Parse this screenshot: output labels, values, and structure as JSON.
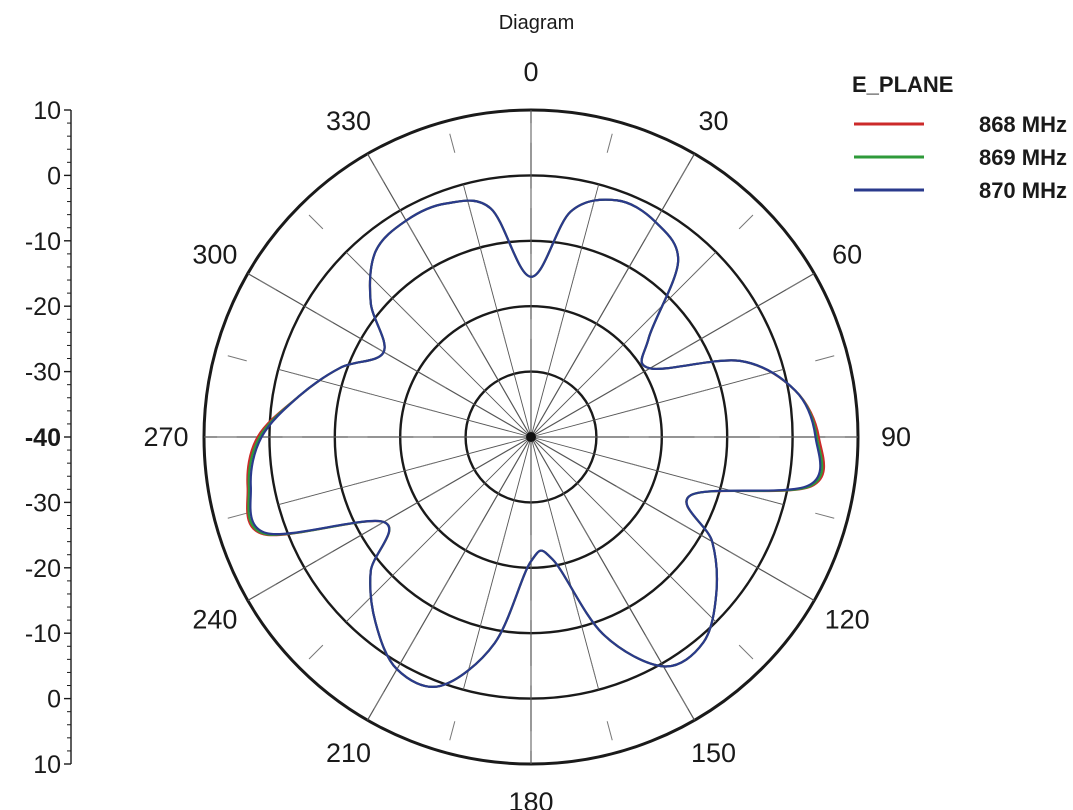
{
  "page": {
    "title": "Diagram"
  },
  "chart_data": {
    "type": "polar",
    "title": "Diagram",
    "angle_labels": [
      "0",
      "30",
      "60",
      "90",
      "120",
      "150",
      "180",
      "210",
      "240",
      "270",
      "300",
      "330"
    ],
    "radial_ticks": [
      {
        "label": "10",
        "bold": false
      },
      {
        "label": "0",
        "bold": false
      },
      {
        "label": "-10",
        "bold": false
      },
      {
        "label": "-20",
        "bold": false
      },
      {
        "label": "-30",
        "bold": false
      },
      {
        "label": "-40",
        "bold": true
      },
      {
        "label": "-30",
        "bold": false
      },
      {
        "label": "-20",
        "bold": false
      },
      {
        "label": "-10",
        "bold": false
      },
      {
        "label": "0",
        "bold": false
      },
      {
        "label": "10",
        "bold": false
      }
    ],
    "r_range": [
      -40,
      10
    ],
    "r_unit_hint": "dB",
    "legend": {
      "title": "E_PLANE",
      "position": "top-right"
    },
    "angles": [
      0,
      10,
      20,
      30,
      40,
      50,
      60,
      70,
      80,
      90,
      100,
      110,
      120,
      130,
      140,
      150,
      160,
      170,
      180,
      190,
      200,
      210,
      220,
      230,
      240,
      250,
      260,
      270,
      280,
      290,
      300,
      310,
      320,
      330,
      340,
      350,
      360
    ],
    "series": [
      {
        "name": "868 MHz",
        "color": "#cc2a2a",
        "values": [
          -15.5,
          -5,
          -1.5,
          -2,
          -5,
          -16.5,
          -19,
          -6,
          1,
          4,
          3.5,
          -14,
          -8,
          -3,
          1,
          0.5,
          -8,
          -21,
          -21,
          -8,
          0.5,
          1,
          -3,
          -8,
          -14,
          3.5,
          4,
          1.8,
          -4,
          -9,
          -14,
          -8,
          -3,
          -1.8,
          -2,
          -4.5,
          -15.5
        ]
      },
      {
        "name": "869 MHz",
        "color": "#2e9a3a",
        "values": [
          -15.5,
          -5,
          -1.5,
          -2,
          -5,
          -16.5,
          -19,
          -6,
          1,
          3.7,
          3.3,
          -14,
          -8,
          -3,
          1,
          0.5,
          -8,
          -21,
          -21,
          -8,
          0.5,
          1,
          -3,
          -8,
          -14,
          3.3,
          3.8,
          1.5,
          -4,
          -9,
          -14,
          -8,
          -3,
          -1.8,
          -2,
          -4.5,
          -15.5
        ]
      },
      {
        "name": "870 MHz",
        "color": "#2a3a8c",
        "values": [
          -15.5,
          -5,
          -1.5,
          -2,
          -5,
          -16.5,
          -19,
          -6,
          1,
          3.5,
          3,
          -14,
          -8,
          -3,
          1,
          0.5,
          -8,
          -21,
          -21,
          -8,
          0.5,
          1,
          -3,
          -8,
          -14,
          3,
          3.5,
          1.2,
          -4,
          -9,
          -14,
          -8,
          -3,
          -1.8,
          -2,
          -4.5,
          -15.5
        ]
      }
    ]
  }
}
